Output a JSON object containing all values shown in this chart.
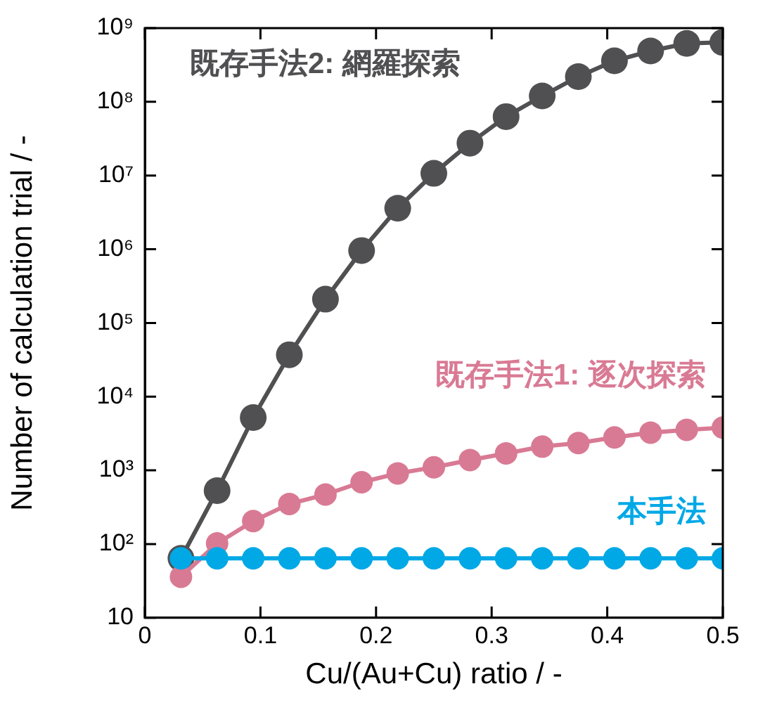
{
  "chart_data": {
    "type": "line",
    "xlabel": "Cu/(Au+Cu) ratio / -",
    "ylabel": "Number of calculation trial / -",
    "x": [
      0.03125,
      0.0625,
      0.09375,
      0.125,
      0.15625,
      0.1875,
      0.21875,
      0.25,
      0.28125,
      0.3125,
      0.34375,
      0.375,
      0.40625,
      0.4375,
      0.46875,
      0.5
    ],
    "series": [
      {
        "name": "既存手法2: 網羅探索",
        "color": "#505052",
        "values": [
          64,
          530,
          5200,
          37000,
          210000,
          960000,
          3600000,
          10700000,
          27500000,
          63000000,
          120000000,
          220000000,
          360000000,
          490000000,
          620000000,
          640000000
        ]
      },
      {
        "name": "既存手法1: 逐次探索",
        "color": "#d97a94",
        "values": [
          36,
          102,
          205,
          350,
          470,
          690,
          910,
          1100,
          1380,
          1700,
          2100,
          2350,
          2800,
          3250,
          3550,
          3800
        ]
      },
      {
        "name": "本手法",
        "color": "#00a8e6",
        "values": [
          64,
          64,
          64,
          64,
          64,
          64,
          64,
          64,
          64,
          64,
          64,
          64,
          64,
          64,
          64,
          64
        ]
      }
    ],
    "log": "y",
    "xlim": [
      0,
      0.5
    ],
    "xticks": [
      0,
      0.1,
      0.2,
      0.3,
      0.4,
      0.5
    ],
    "ylim": [
      10,
      1000000000
    ],
    "yticks": [
      10,
      {
        "value": 100,
        "label": "10²"
      },
      {
        "value": 1000,
        "label": "10³"
      },
      {
        "value": 10000,
        "label": "10⁴"
      },
      {
        "value": 100000,
        "label": "10⁵"
      },
      {
        "value": 1000000,
        "label": "10⁶"
      },
      {
        "value": 10000000,
        "label": "10⁷"
      },
      {
        "value": 100000000,
        "label": "10⁸"
      },
      {
        "value": 1000000000,
        "label": "10⁹"
      }
    ],
    "grid": false,
    "legend": false,
    "marker": "circle",
    "line_style": "solid"
  }
}
